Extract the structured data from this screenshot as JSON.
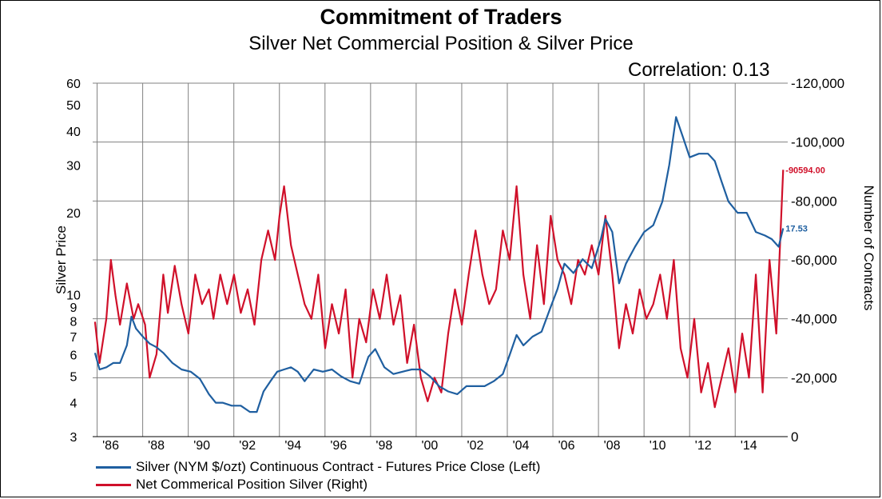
{
  "title": "Commitment of Traders",
  "subtitle": "Silver Net Commercial Position & Silver Price",
  "correlation_label": "Correlation: 0.13",
  "colors": {
    "silver": "#1f5fa0",
    "position": "#d0102a",
    "grid": "#808080"
  },
  "chart_data": {
    "type": "line",
    "title": "Commitment of Traders",
    "subtitle": "Silver Net Commercial Position & Silver Price",
    "annotation": "Correlation: 0.13",
    "ylabel_left": "Silver Price",
    "ylabel_right": "Number of Contracts",
    "y_left_scale": "log",
    "y_left_range": [
      3,
      60
    ],
    "y_left_ticks": [
      3,
      4,
      5,
      6,
      7,
      8,
      9,
      10,
      20,
      30,
      40,
      50,
      60
    ],
    "y_right_reversed": true,
    "y_right_range": [
      0,
      -120000
    ],
    "y_right_ticks": [
      0,
      -20000,
      -40000,
      -60000,
      -80000,
      -100000,
      -120000
    ],
    "y_right_tick_labels": [
      "0",
      "-20,000",
      "-40,000",
      "-60,000",
      "-80,000",
      "-100,000",
      "-120,000"
    ],
    "x_range": [
      1985.7,
      2016.2
    ],
    "x_ticks": [
      1986,
      1988,
      1990,
      1992,
      1994,
      1996,
      1998,
      2000,
      2002,
      2004,
      2006,
      2008,
      2010,
      2012,
      2014
    ],
    "x_tick_labels": [
      "'86",
      "'88",
      "'90",
      "'92",
      "'94",
      "'96",
      "'98",
      "'00",
      "'02",
      "'04",
      "'06",
      "'08",
      "'10",
      "'12",
      "'14"
    ],
    "grid": true,
    "legend_position": "bottom-left",
    "series": [
      {
        "name": "Silver (NYM $/ozt) Continuous Contract - Futures Price Close  (Left)",
        "axis": "left",
        "last_label": "17.53",
        "x": [
          1985.8,
          1986.0,
          1986.3,
          1986.6,
          1986.9,
          1987.2,
          1987.4,
          1987.6,
          1987.9,
          1988.2,
          1988.5,
          1988.8,
          1989.2,
          1989.6,
          1990.0,
          1990.4,
          1990.8,
          1991.1,
          1991.4,
          1991.8,
          1992.2,
          1992.6,
          1992.9,
          1993.2,
          1993.5,
          1993.8,
          1994.1,
          1994.4,
          1994.7,
          1995.0,
          1995.4,
          1995.8,
          1996.2,
          1996.6,
          1997.0,
          1997.4,
          1997.8,
          1998.1,
          1998.5,
          1998.9,
          1999.3,
          1999.7,
          2000.1,
          2000.5,
          2000.9,
          2001.3,
          2001.7,
          2002.1,
          2002.5,
          2002.9,
          2003.3,
          2003.7,
          2004.0,
          2004.3,
          2004.6,
          2005.0,
          2005.4,
          2005.8,
          2006.1,
          2006.4,
          2006.8,
          2007.2,
          2007.6,
          2008.0,
          2008.2,
          2008.5,
          2008.8,
          2009.1,
          2009.5,
          2009.9,
          2010.3,
          2010.7,
          2011.0,
          2011.3,
          2011.6,
          2011.9,
          2012.3,
          2012.7,
          2013.0,
          2013.3,
          2013.6,
          2014.0,
          2014.4,
          2014.8,
          2015.2,
          2015.5,
          2015.8,
          2016.0
        ],
        "values": [
          6.1,
          5.3,
          5.4,
          5.6,
          5.6,
          6.5,
          8.3,
          7.5,
          7.0,
          6.6,
          6.4,
          6.1,
          5.6,
          5.3,
          5.2,
          4.9,
          4.3,
          4.0,
          4.0,
          3.9,
          3.9,
          3.7,
          3.7,
          4.4,
          4.8,
          5.2,
          5.3,
          5.4,
          5.2,
          4.8,
          5.3,
          5.2,
          5.3,
          5.0,
          4.8,
          4.7,
          5.9,
          6.3,
          5.4,
          5.1,
          5.2,
          5.3,
          5.3,
          5.0,
          4.6,
          4.4,
          4.3,
          4.6,
          4.6,
          4.6,
          4.8,
          5.1,
          6.0,
          7.1,
          6.5,
          7.0,
          7.3,
          9.0,
          10.5,
          13.0,
          12.0,
          13.5,
          12.5,
          16.0,
          19.0,
          17.0,
          11.0,
          13.0,
          15.0,
          17.0,
          18.0,
          22.0,
          30.0,
          45.0,
          38.0,
          32.0,
          33.0,
          33.0,
          31.0,
          26.0,
          22.0,
          20.0,
          20.0,
          17.0,
          16.5,
          16.0,
          15.0,
          17.53
        ]
      },
      {
        "name": "Net Commerical Position Silver (Right)",
        "axis": "right",
        "last_label": "-90594.00",
        "x": [
          1985.8,
          1986.0,
          1986.3,
          1986.5,
          1986.7,
          1986.9,
          1987.2,
          1987.5,
          1987.7,
          1988.0,
          1988.2,
          1988.5,
          1988.8,
          1989.0,
          1989.3,
          1989.6,
          1989.9,
          1990.2,
          1990.5,
          1990.8,
          1991.0,
          1991.3,
          1991.6,
          1991.9,
          1992.2,
          1992.5,
          1992.8,
          1993.1,
          1993.4,
          1993.7,
          1993.9,
          1994.1,
          1994.4,
          1994.7,
          1995.0,
          1995.3,
          1995.6,
          1995.9,
          1996.2,
          1996.5,
          1996.8,
          1997.1,
          1997.4,
          1997.7,
          1998.0,
          1998.3,
          1998.6,
          1998.9,
          1999.2,
          1999.5,
          1999.8,
          2000.1,
          2000.4,
          2000.7,
          2001.0,
          2001.3,
          2001.6,
          2001.9,
          2002.2,
          2002.5,
          2002.8,
          2003.1,
          2003.4,
          2003.7,
          2004.0,
          2004.3,
          2004.6,
          2004.9,
          2005.2,
          2005.5,
          2005.8,
          2006.1,
          2006.4,
          2006.7,
          2007.0,
          2007.3,
          2007.6,
          2007.9,
          2008.2,
          2008.5,
          2008.8,
          2009.1,
          2009.4,
          2009.7,
          2010.0,
          2010.3,
          2010.6,
          2010.9,
          2011.2,
          2011.5,
          2011.8,
          2012.1,
          2012.4,
          2012.7,
          2013.0,
          2013.3,
          2013.6,
          2013.9,
          2014.2,
          2014.5,
          2014.8,
          2015.1,
          2015.4,
          2015.7,
          2016.0
        ],
        "values": [
          -39000,
          -25000,
          -40000,
          -60000,
          -48000,
          -38000,
          -52000,
          -40000,
          -45000,
          -38000,
          -20000,
          -28000,
          -55000,
          -42000,
          -58000,
          -45000,
          -35000,
          -55000,
          -45000,
          -50000,
          -40000,
          -55000,
          -45000,
          -55000,
          -42000,
          -50000,
          -38000,
          -60000,
          -70000,
          -60000,
          -75000,
          -85000,
          -65000,
          -55000,
          -45000,
          -40000,
          -55000,
          -30000,
          -45000,
          -35000,
          -50000,
          -20000,
          -40000,
          -32000,
          -50000,
          -40000,
          -55000,
          -38000,
          -48000,
          -25000,
          -38000,
          -20000,
          -12000,
          -20000,
          -15000,
          -35000,
          -50000,
          -38000,
          -55000,
          -70000,
          -55000,
          -45000,
          -50000,
          -70000,
          -60000,
          -85000,
          -55000,
          -40000,
          -65000,
          -45000,
          -75000,
          -60000,
          -55000,
          -45000,
          -60000,
          -55000,
          -65000,
          -55000,
          -75000,
          -55000,
          -30000,
          -45000,
          -35000,
          -50000,
          -40000,
          -45000,
          -55000,
          -40000,
          -60000,
          -30000,
          -20000,
          -40000,
          -15000,
          -25000,
          -10000,
          -20000,
          -30000,
          -15000,
          -35000,
          -20000,
          -55000,
          -15000,
          -60000,
          -35000,
          -90594
        ]
      }
    ]
  }
}
